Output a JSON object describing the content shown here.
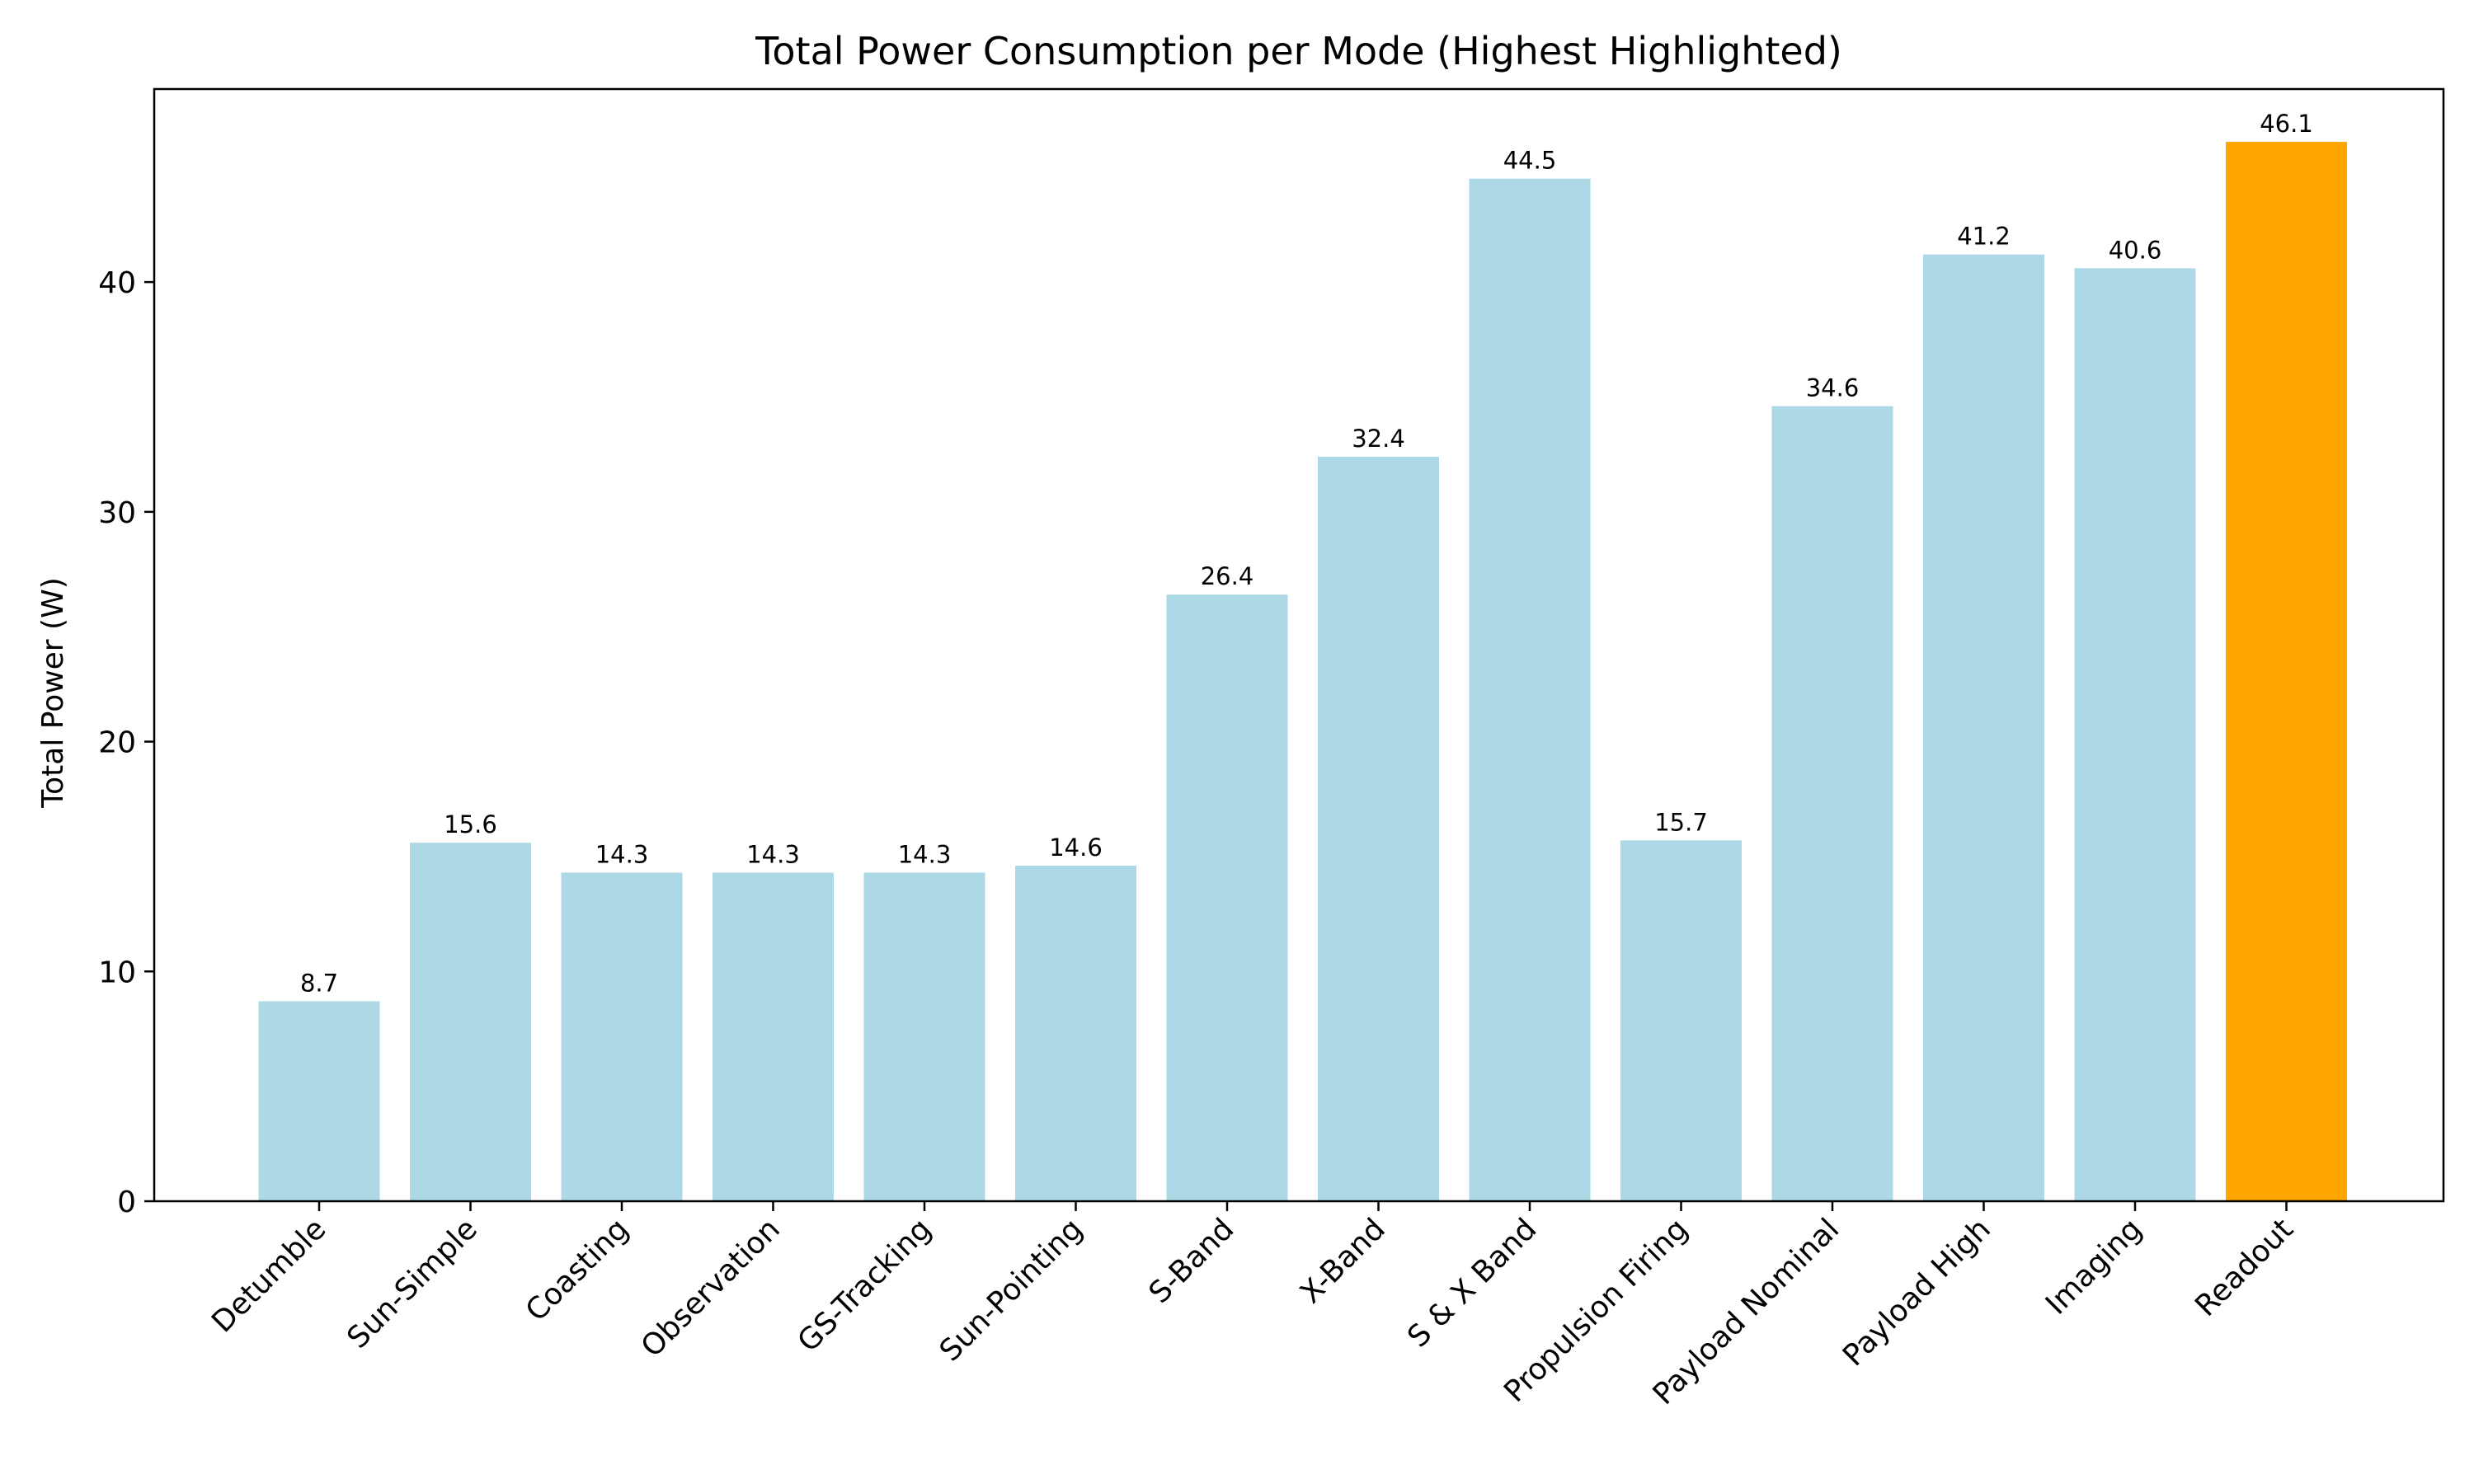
{
  "chart_data": {
    "type": "bar",
    "title": "Total Power Consumption per Mode (Highest Highlighted)",
    "xlabel": "",
    "ylabel": "Total Power (W)",
    "ylim": [
      0,
      48.4
    ],
    "yticks": [
      0,
      10,
      20,
      30,
      40
    ],
    "grid": false,
    "legend": "none",
    "categories": [
      "Detumble",
      "Sun-Simple",
      "Coasting",
      "Observation",
      "GS-Tracking",
      "Sun-Pointing",
      "S-Band",
      "X-Band",
      "S & X Band",
      "Propulsion Firing",
      "Payload Nominal",
      "Payload High",
      "Imaging",
      "Readout"
    ],
    "values": [
      8.7,
      15.6,
      14.3,
      14.3,
      14.3,
      14.6,
      26.4,
      32.4,
      44.5,
      15.7,
      34.6,
      41.2,
      40.6,
      46.1
    ],
    "data_labels": [
      "8.7",
      "15.6",
      "14.3",
      "14.3",
      "14.3",
      "14.6",
      "26.4",
      "32.4",
      "44.5",
      "15.7",
      "34.6",
      "41.2",
      "40.6",
      "46.1"
    ],
    "highlighted_category": "Readout",
    "colors": {
      "bar": "#add8e6",
      "highlight": "#ffa500",
      "axis": "#000000"
    }
  }
}
